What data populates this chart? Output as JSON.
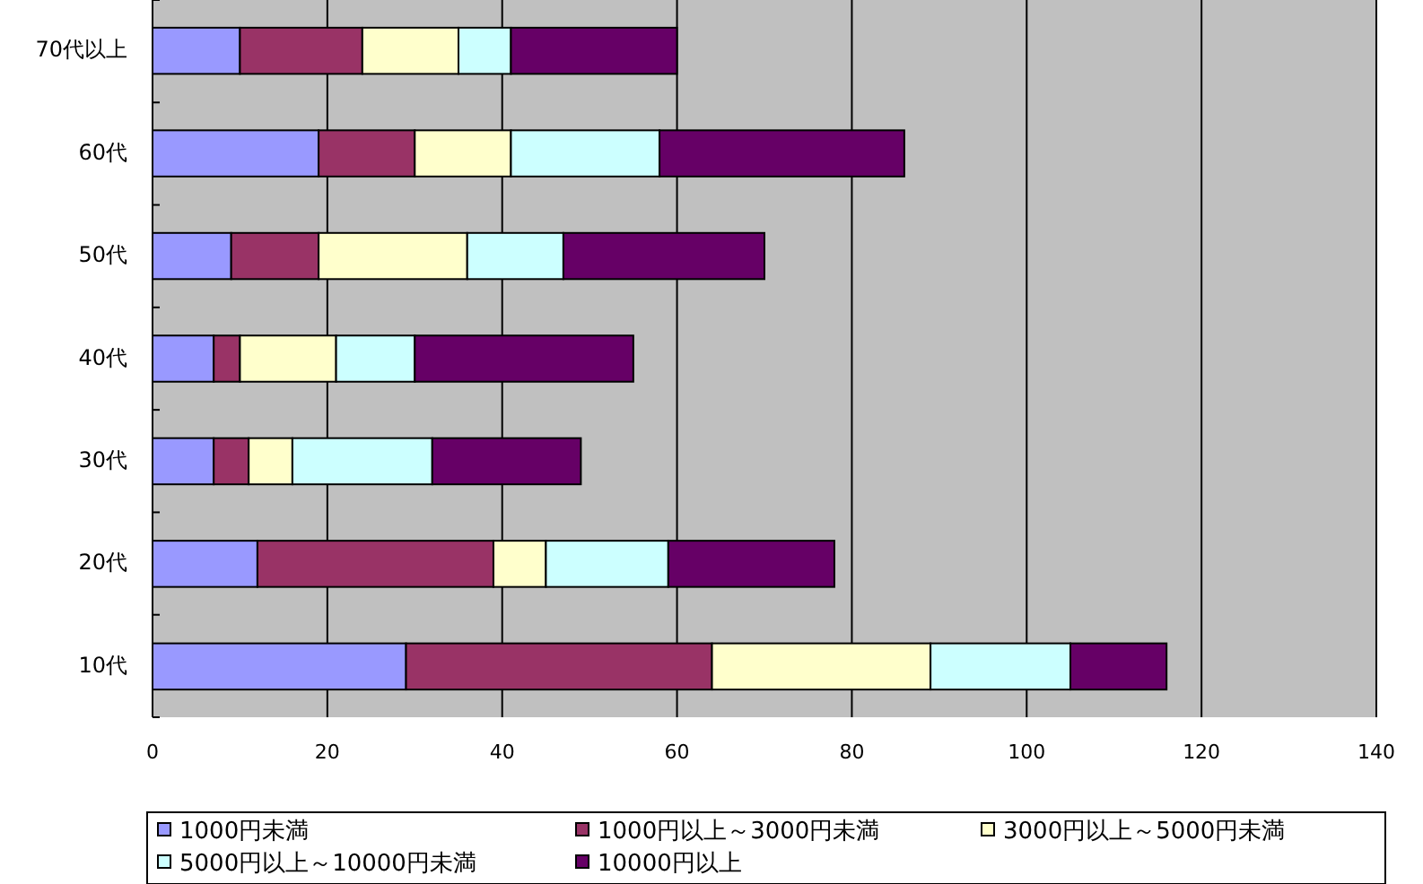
{
  "chart_data": {
    "type": "bar",
    "orientation": "horizontal",
    "stacked": true,
    "categories": [
      "70代以上",
      "60代",
      "50代",
      "40代",
      "30代",
      "20代",
      "10代"
    ],
    "series": [
      {
        "name": "1000円未満",
        "color": "#9999ff",
        "values": [
          10,
          19,
          9,
          7,
          7,
          12,
          29
        ]
      },
      {
        "name": "1000円以上～3000円未満",
        "color": "#993366",
        "values": [
          14,
          11,
          10,
          3,
          4,
          27,
          35
        ]
      },
      {
        "name": "3000円以上～5000円未満",
        "color": "#ffffcc",
        "values": [
          11,
          11,
          17,
          11,
          5,
          6,
          25
        ]
      },
      {
        "name": "5000円以上～10000円未満",
        "color": "#ccffff",
        "values": [
          6,
          17,
          11,
          9,
          16,
          14,
          16
        ]
      },
      {
        "name": "10000円以上",
        "color": "#660066",
        "values": [
          19,
          28,
          23,
          25,
          17,
          19,
          11
        ]
      }
    ],
    "xlim": [
      0,
      140
    ],
    "xticks": [
      0,
      20,
      40,
      60,
      80,
      100,
      120,
      140
    ],
    "grid": "x",
    "legend": "bottom"
  }
}
